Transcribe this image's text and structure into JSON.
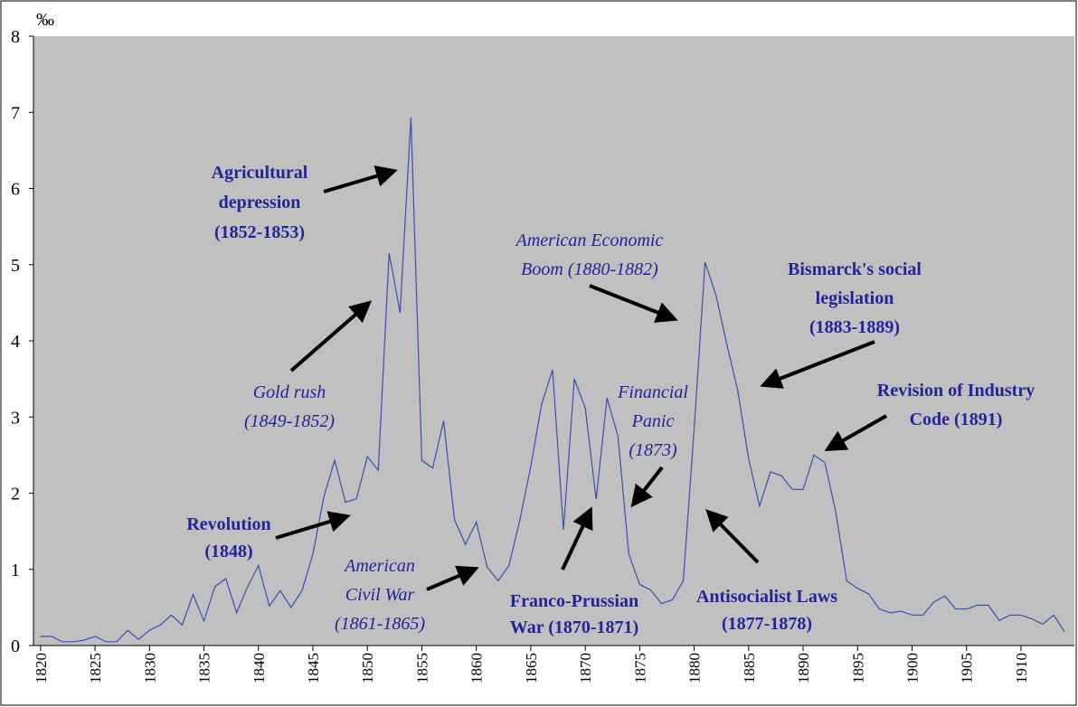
{
  "chart_data": {
    "type": "line",
    "y_label": "‰",
    "x": [
      1820,
      1821,
      1822,
      1823,
      1824,
      1825,
      1826,
      1827,
      1828,
      1829,
      1830,
      1831,
      1832,
      1833,
      1834,
      1835,
      1836,
      1837,
      1838,
      1839,
      1840,
      1841,
      1842,
      1843,
      1844,
      1845,
      1846,
      1847,
      1848,
      1849,
      1850,
      1851,
      1852,
      1853,
      1854,
      1855,
      1856,
      1857,
      1858,
      1859,
      1860,
      1861,
      1862,
      1863,
      1864,
      1865,
      1866,
      1867,
      1868,
      1869,
      1870,
      1871,
      1872,
      1873,
      1874,
      1875,
      1876,
      1877,
      1878,
      1879,
      1880,
      1881,
      1882,
      1883,
      1884,
      1885,
      1886,
      1887,
      1888,
      1889,
      1890,
      1891,
      1892,
      1893,
      1894,
      1895,
      1896,
      1897,
      1898,
      1899,
      1900,
      1901,
      1902,
      1903,
      1904,
      1905,
      1906,
      1907,
      1908,
      1909,
      1910,
      1911,
      1912,
      1913,
      1914
    ],
    "values": [
      0.12,
      0.12,
      0.05,
      0.05,
      0.07,
      0.12,
      0.05,
      0.05,
      0.2,
      0.08,
      0.2,
      0.27,
      0.4,
      0.27,
      0.67,
      0.32,
      0.77,
      0.88,
      0.43,
      0.77,
      1.05,
      0.52,
      0.72,
      0.5,
      0.72,
      1.2,
      1.95,
      2.43,
      1.88,
      1.93,
      2.48,
      2.3,
      5.15,
      4.37,
      6.93,
      2.43,
      2.33,
      2.95,
      1.65,
      1.33,
      1.62,
      1.03,
      0.85,
      1.05,
      1.65,
      2.35,
      3.17,
      3.62,
      1.52,
      3.5,
      3.12,
      1.92,
      3.25,
      2.75,
      1.2,
      0.8,
      0.73,
      0.55,
      0.6,
      0.85,
      2.85,
      5.03,
      4.6,
      3.95,
      3.35,
      2.45,
      1.83,
      2.28,
      2.23,
      2.05,
      2.05,
      2.5,
      2.4,
      1.75,
      0.85,
      0.75,
      0.68,
      0.48,
      0.43,
      0.45,
      0.4,
      0.4,
      0.57,
      0.65,
      0.48,
      0.48,
      0.53,
      0.53,
      0.33,
      0.4,
      0.4,
      0.35,
      0.28,
      0.4,
      0.18
    ],
    "color": "#3a4fb0",
    "xlim": [
      1819.35,
      1914.9
    ],
    "xticks": [
      1820,
      1825,
      1830,
      1835,
      1840,
      1845,
      1850,
      1855,
      1860,
      1865,
      1870,
      1875,
      1880,
      1885,
      1890,
      1895,
      1900,
      1905,
      1910
    ],
    "ylim": [
      0,
      8
    ],
    "yticks": [
      0,
      1,
      2,
      3,
      4,
      5,
      6,
      7,
      8
    ],
    "annotations": [
      {
        "lines": [
          "Agricultural",
          "depression",
          "(1852-1853)"
        ],
        "style": "bold"
      },
      {
        "lines": [
          "American Economic",
          "Boom (1880-1882)"
        ],
        "style": "italic"
      },
      {
        "lines": [
          "Bismarck's social",
          "legislation",
          "(1883-1889)"
        ],
        "style": "bold"
      },
      {
        "lines": [
          "Gold rush",
          "(1849-1852)"
        ],
        "style": "italic"
      },
      {
        "lines": [
          "Financial",
          "Panic",
          "(1873)"
        ],
        "style": "italic"
      },
      {
        "lines": [
          "Revision of Industry",
          "Code (1891)"
        ],
        "style": "bold"
      },
      {
        "lines": [
          "Revolution",
          "(1848)"
        ],
        "style": "bold"
      },
      {
        "lines": [
          "American",
          "Civil War",
          "(1861-1865)"
        ],
        "style": "italic"
      },
      {
        "lines": [
          "Franco-Prussian",
          "War (1870-1871)"
        ],
        "style": "bold"
      },
      {
        "lines": [
          "Antisocialist Laws",
          "(1877-1878)"
        ],
        "style": "bold"
      }
    ]
  }
}
